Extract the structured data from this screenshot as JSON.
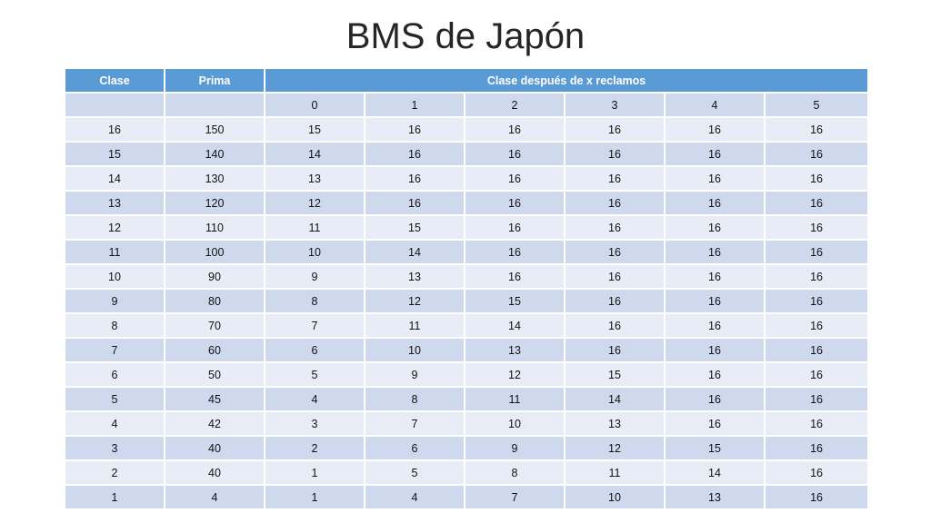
{
  "title": "BMS de Japón",
  "table": {
    "headers": {
      "clase": "Clase",
      "prima": "Prima",
      "group": "Clase después de x reclamos"
    },
    "subheader": [
      "",
      "",
      "0",
      "1",
      "2",
      "3",
      "4",
      "5"
    ],
    "rows": [
      [
        "16",
        "150",
        "15",
        "16",
        "16",
        "16",
        "16",
        "16"
      ],
      [
        "15",
        "140",
        "14",
        "16",
        "16",
        "16",
        "16",
        "16"
      ],
      [
        "14",
        "130",
        "13",
        "16",
        "16",
        "16",
        "16",
        "16"
      ],
      [
        "13",
        "120",
        "12",
        "16",
        "16",
        "16",
        "16",
        "16"
      ],
      [
        "12",
        "110",
        "11",
        "15",
        "16",
        "16",
        "16",
        "16"
      ],
      [
        "11",
        "100",
        "10",
        "14",
        "16",
        "16",
        "16",
        "16"
      ],
      [
        "10",
        "90",
        "9",
        "13",
        "16",
        "16",
        "16",
        "16"
      ],
      [
        "9",
        "80",
        "8",
        "12",
        "15",
        "16",
        "16",
        "16"
      ],
      [
        "8",
        "70",
        "7",
        "11",
        "14",
        "16",
        "16",
        "16"
      ],
      [
        "7",
        "60",
        "6",
        "10",
        "13",
        "16",
        "16",
        "16"
      ],
      [
        "6",
        "50",
        "5",
        "9",
        "12",
        "15",
        "16",
        "16"
      ],
      [
        "5",
        "45",
        "4",
        "8",
        "11",
        "14",
        "16",
        "16"
      ],
      [
        "4",
        "42",
        "3",
        "7",
        "10",
        "13",
        "16",
        "16"
      ],
      [
        "3",
        "40",
        "2",
        "6",
        "9",
        "12",
        "15",
        "16"
      ],
      [
        "2",
        "40",
        "1",
        "5",
        "8",
        "11",
        "14",
        "16"
      ],
      [
        "1",
        "4",
        "1",
        "4",
        "7",
        "10",
        "13",
        "16"
      ]
    ]
  },
  "colors": {
    "header": "#5b9bd5",
    "row_dark": "#cfd9ee",
    "row_light": "#e8ecf6"
  }
}
